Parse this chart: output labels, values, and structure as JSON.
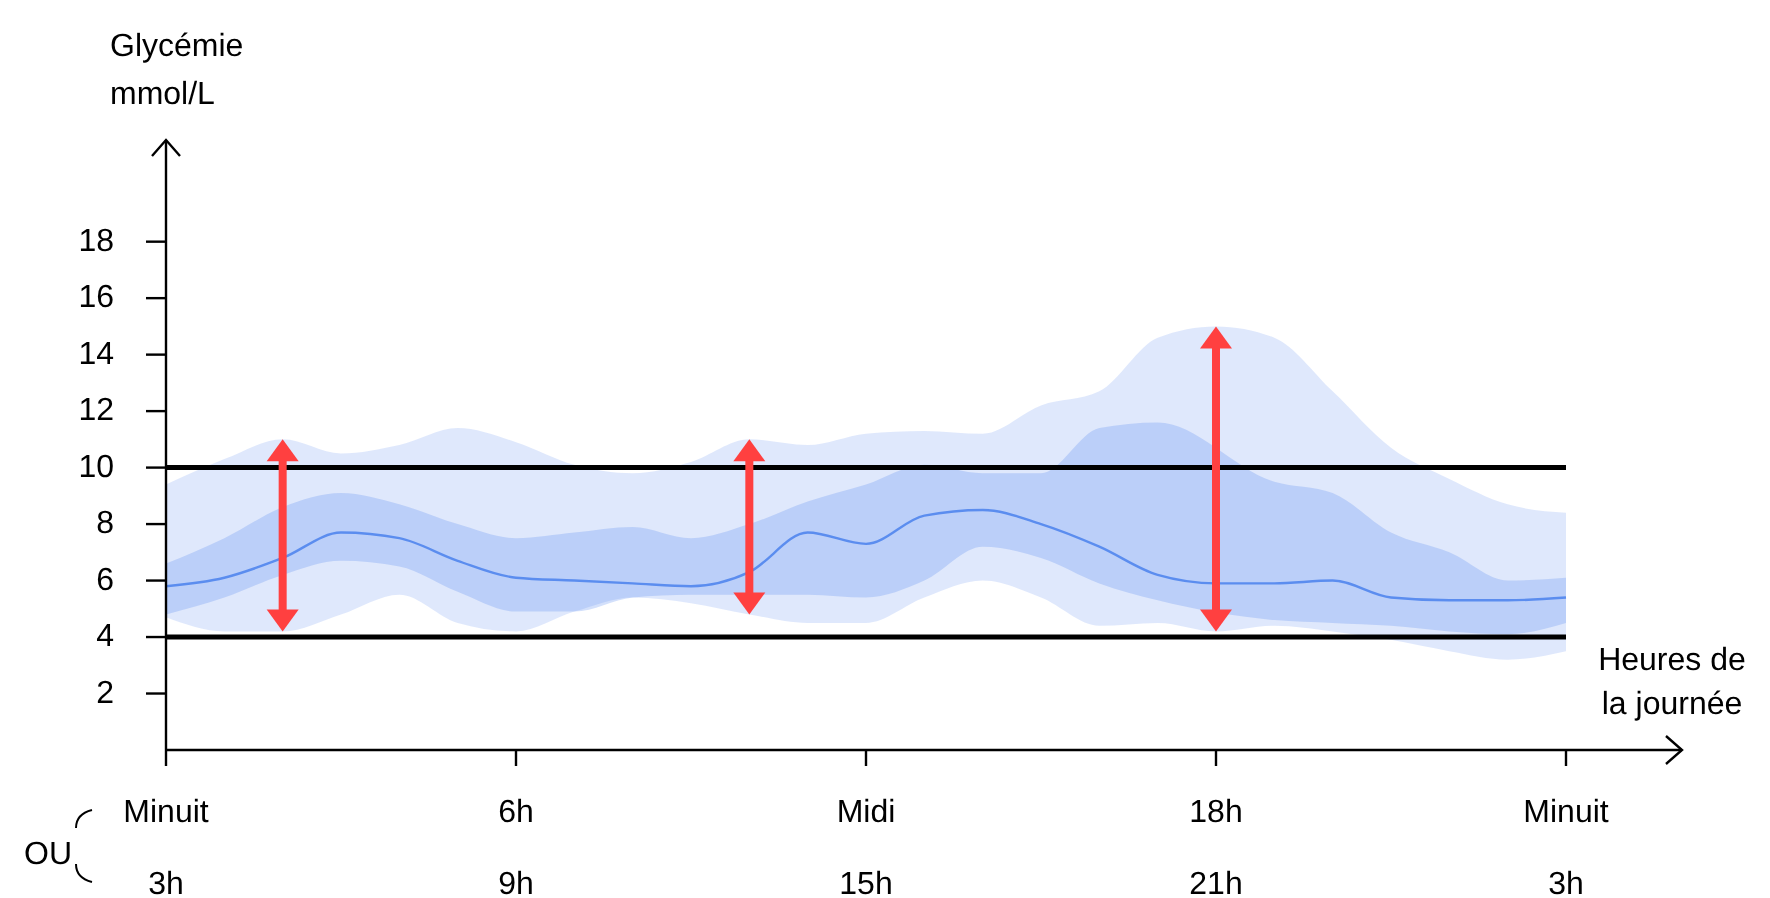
{
  "chart_data": {
    "type": "line",
    "xlabel": "Heures de\nla journée",
    "ylabel": "Glycémie\nmmol/L",
    "categories": [
      "Minuit\n3h",
      null,
      null,
      null,
      null,
      null,
      "6h\n9h",
      null,
      null,
      null,
      null,
      null,
      "Midi\n15h",
      null,
      null,
      null,
      null,
      null,
      "18h\n21h",
      null,
      null,
      null,
      null,
      null,
      "Minuit\n3h"
    ],
    "ylim": [
      0,
      21.6
    ],
    "yticks": [
      2,
      4,
      6,
      8,
      10,
      12,
      14,
      16,
      18
    ],
    "series": [
      {
        "color": "#88aaf4",
        "values": [
          null,
          null,
          null,
          null,
          null,
          null,
          null,
          null,
          null,
          null,
          null,
          null,
          null,
          null,
          null,
          null,
          null,
          null,
          null,
          null,
          null,
          null,
          null,
          null,
          null
        ],
        "upper": [
          9.4,
          10.3,
          11.0,
          10.5,
          10.8,
          11.4,
          10.9,
          10.1,
          9.8,
          10.2,
          11.0,
          10.8,
          11.2,
          11.3,
          11.2,
          12.2,
          12.7,
          14.6,
          15.0,
          14.6,
          12.7,
          10.7,
          9.6,
          8.7,
          8.4
        ],
        "lower": [
          4.7,
          4.2,
          4.2,
          4.8,
          5.5,
          4.5,
          4.2,
          4.9,
          5.4,
          5.2,
          4.8,
          4.5,
          4.5,
          5.4,
          6.0,
          5.4,
          4.4,
          4.5,
          4.2,
          4.4,
          4.2,
          3.9,
          3.5,
          3.2,
          3.5
        ]
      },
      {
        "color": "#5b8def",
        "values": [
          5.8,
          6.1,
          6.8,
          7.7,
          7.5,
          6.7,
          6.1,
          6.0,
          5.9,
          5.8,
          6.3,
          7.7,
          7.3,
          8.3,
          8.5,
          8.0,
          7.2,
          6.2,
          5.9,
          5.9,
          6.0,
          5.4,
          5.3,
          5.3,
          5.4
        ],
        "lower": [
          4.8,
          5.4,
          6.2,
          6.7,
          6.5,
          5.6,
          4.9,
          4.9,
          5.4,
          5.5,
          5.5,
          5.5,
          5.4,
          6.0,
          7.2,
          6.8,
          5.9,
          5.3,
          null,
          4.6,
          4.5,
          4.4,
          4.2,
          4.1,
          4.5
        ],
        "upper": [
          6.6,
          7.5,
          8.6,
          9.1,
          8.7,
          8.0,
          7.5,
          7.7,
          7.9,
          7.5,
          8.0,
          8.8,
          9.4,
          10.1,
          9.8,
          9.8,
          11.4,
          11.6,
          null,
          9.5,
          9.1,
          7.7,
          7.0,
          6.0,
          6.1
        ]
      }
    ],
    "ref_lines": [
      {
        "axis": "y",
        "value": 4,
        "color": "#000000"
      },
      {
        "axis": "y",
        "value": 10,
        "color": "#000000"
      }
    ],
    "annotations": [
      "OU"
    ],
    "grid": false,
    "legend": false
  }
}
